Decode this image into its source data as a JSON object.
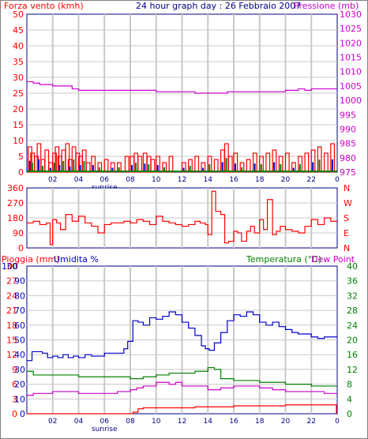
{
  "title": "24 hour graph day : 26 Febbraio 2007",
  "sunrise_label": "sunrise",
  "colors": {
    "red": "#ff0000",
    "magenta": "#cc00cc",
    "blue": "#0000cc",
    "green": "#008000",
    "grid": "#c8c8c8",
    "frame": "#000080",
    "wind_bars": "#ff0000",
    "wind_blue": "#0000cc",
    "wind_green": "#008000"
  },
  "chart_data": [
    {
      "type": "bar",
      "ylabel_left": "Forza vento (kmh)",
      "ylabel_right": "Pressione (mb)",
      "left_ticks": [
        "50",
        "45",
        "40",
        "35",
        "30",
        "25",
        "20",
        "15",
        "10",
        "5",
        "0"
      ],
      "right_ticks_top": [
        "1030",
        "1025",
        "1020",
        "1015",
        "1010",
        "1005",
        "1000",
        "995",
        "990",
        "985"
      ],
      "right_ticks_bottom": [
        "980",
        "975"
      ],
      "x_ticks": [
        "02",
        "04",
        "06",
        "08",
        "10",
        "12",
        "14",
        "16",
        "18",
        "20",
        "22"
      ],
      "x_end_tick": "0",
      "ylim_left": [
        0,
        50
      ],
      "ylim_right": [
        975,
        1030
      ],
      "series": [
        {
          "name": "Pressione (mb)",
          "color": "magenta",
          "type": "line",
          "x": [
            0,
            0.5,
            1.0,
            2.0,
            3.5,
            4.0,
            8.0,
            10.0,
            12.0,
            13.0,
            14.0,
            14.5,
            15.5,
            16.0,
            19.0,
            20.0,
            20.5,
            21.0,
            21.5,
            22.0,
            23.5
          ],
          "y": [
            1006.5,
            1006,
            1005.5,
            1005,
            1004,
            1003.5,
            1003.5,
            1003,
            1003,
            1002.5,
            1002.5,
            1002.5,
            1003,
            1003,
            1003,
            1003.5,
            1003.5,
            1004,
            1003.5,
            1004,
            1004
          ]
        },
        {
          "name": "Forza vento",
          "color": "red",
          "type": "bars",
          "gusts": [
            [
              0.1,
              8
            ],
            [
              0.3,
              6
            ],
            [
              0.6,
              5
            ],
            [
              0.8,
              9
            ],
            [
              1.1,
              4
            ],
            [
              1.4,
              7
            ],
            [
              1.7,
              3
            ],
            [
              2.0,
              6
            ],
            [
              2.2,
              8
            ],
            [
              2.4,
              5
            ],
            [
              2.7,
              7
            ],
            [
              3.0,
              9
            ],
            [
              3.2,
              4
            ],
            [
              3.5,
              8
            ],
            [
              3.8,
              6
            ],
            [
              4.0,
              5
            ],
            [
              4.3,
              7
            ],
            [
              4.6,
              3
            ],
            [
              5.0,
              5
            ],
            [
              5.5,
              3
            ],
            [
              6.0,
              4
            ],
            [
              6.5,
              3
            ],
            [
              7.0,
              3
            ],
            [
              7.6,
              5
            ],
            [
              8.0,
              5
            ],
            [
              8.3,
              6
            ],
            [
              8.6,
              5
            ],
            [
              9.0,
              6
            ],
            [
              9.3,
              5
            ],
            [
              9.6,
              4
            ],
            [
              10.0,
              5
            ],
            [
              10.5,
              3
            ],
            [
              11.0,
              5
            ],
            [
              12.0,
              3
            ],
            [
              12.5,
              4
            ],
            [
              13.0,
              5
            ],
            [
              13.5,
              3
            ],
            [
              14.0,
              5
            ],
            [
              14.5,
              4
            ],
            [
              15.0,
              7
            ],
            [
              15.3,
              9
            ],
            [
              15.6,
              5
            ],
            [
              16.0,
              6
            ],
            [
              16.5,
              3
            ],
            [
              17.0,
              4
            ],
            [
              17.5,
              6
            ],
            [
              18.0,
              5
            ],
            [
              18.5,
              6
            ],
            [
              19.0,
              7
            ],
            [
              19.5,
              5
            ],
            [
              20.0,
              6
            ],
            [
              20.5,
              3
            ],
            [
              21.0,
              5
            ],
            [
              21.5,
              6
            ],
            [
              22.0,
              7
            ],
            [
              22.5,
              8
            ],
            [
              23.0,
              6
            ],
            [
              23.5,
              9
            ]
          ]
        }
      ]
    },
    {
      "type": "line",
      "left_ticks": [
        "360",
        "270",
        "180",
        "90",
        "0"
      ],
      "right_ticks": [
        "N",
        "W",
        "S",
        "E",
        "N"
      ],
      "x_ticks": [],
      "ylim": [
        0,
        360
      ],
      "series": [
        {
          "name": "direction",
          "color": "red",
          "x": [
            0,
            0.5,
            1.0,
            1.5,
            1.8,
            2.0,
            2.3,
            2.6,
            3.0,
            3.5,
            4.0,
            4.5,
            5.0,
            5.5,
            6.0,
            6.5,
            7.0,
            7.5,
            8.0,
            8.5,
            9.0,
            9.5,
            10.0,
            10.5,
            11.0,
            11.5,
            12.0,
            12.5,
            13.0,
            13.4,
            13.8,
            14.0,
            14.3,
            14.6,
            15.0,
            15.3,
            15.6,
            16.0,
            16.3,
            16.6,
            17.0,
            17.3,
            17.6,
            18.0,
            18.3,
            18.6,
            19.0,
            19.3,
            19.6,
            20.0,
            20.5,
            21.0,
            21.5,
            22.0,
            22.5,
            23.0,
            23.5
          ],
          "y": [
            150,
            160,
            140,
            150,
            20,
            170,
            150,
            110,
            200,
            160,
            190,
            150,
            130,
            90,
            140,
            150,
            150,
            160,
            150,
            170,
            160,
            140,
            190,
            160,
            150,
            140,
            130,
            140,
            160,
            150,
            140,
            80,
            340,
            220,
            200,
            30,
            40,
            100,
            90,
            40,
            100,
            130,
            90,
            170,
            110,
            290,
            80,
            100,
            130,
            110,
            100,
            90,
            130,
            170,
            140,
            180,
            160
          ]
        }
      ]
    },
    {
      "type": "line",
      "ylabel_left": "Pioggia (mm)",
      "ylabel_mid": "Umidita %",
      "ylabel_right": "Temperatura (°C)",
      "ylabel_right2": "Dew Point",
      "left_ticks_rain": [
        "30",
        "27",
        "24",
        "21",
        "18",
        "15",
        "12",
        "9",
        "6",
        "3",
        "0"
      ],
      "left_ticks_hum": [
        "100",
        "90",
        "80",
        "70",
        "60",
        "50",
        "40",
        "30",
        "20",
        "10",
        "0"
      ],
      "right_ticks": [
        "40",
        "36",
        "32",
        "28",
        "24",
        "20",
        "16",
        "12",
        "8",
        "4",
        "0"
      ],
      "x_ticks": [
        "02",
        "04",
        "06",
        "08",
        "10",
        "12",
        "14",
        "16",
        "18",
        "20",
        "22"
      ],
      "x_end_tick": "0",
      "ylim_left": [
        0,
        100
      ],
      "ylim_right": [
        0,
        40
      ],
      "series": [
        {
          "name": "Umidita %",
          "color": "blue",
          "x": [
            0,
            0.4,
            0.8,
            1.2,
            1.6,
            2.0,
            2.4,
            2.8,
            3.2,
            3.6,
            4.0,
            4.5,
            5.0,
            5.5,
            6.0,
            6.5,
            7.0,
            7.5,
            7.8,
            8.2,
            8.6,
            9.0,
            9.5,
            10.0,
            10.5,
            11.0,
            11.5,
            12.0,
            12.5,
            13.0,
            13.5,
            13.8,
            14.1,
            14.5,
            15.0,
            15.5,
            16.0,
            16.5,
            17.0,
            17.5,
            18.0,
            18.5,
            19.0,
            19.5,
            20.0,
            20.5,
            21.0,
            21.5,
            22.0,
            22.5,
            23.0,
            23.5
          ],
          "y": [
            36,
            42,
            42,
            41,
            38,
            39,
            38,
            40,
            38,
            39,
            38,
            40,
            39,
            39,
            41,
            41,
            41,
            44,
            49,
            63,
            62,
            60,
            65,
            64,
            66,
            69,
            67,
            62,
            58,
            53,
            46,
            44,
            43,
            48,
            55,
            63,
            67,
            66,
            69,
            67,
            62,
            60,
            62,
            59,
            57,
            55,
            54,
            54,
            52,
            51,
            52,
            52
          ]
        },
        {
          "name": "Temperatura (°C)",
          "color": "green",
          "x": [
            0,
            0.5,
            1.0,
            2.0,
            3.0,
            4.0,
            5.0,
            6.0,
            7.0,
            8.0,
            9.0,
            10.0,
            11.0,
            12.0,
            13.0,
            14.0,
            14.5,
            15.0,
            16.0,
            17.0,
            18.0,
            19.0,
            20.0,
            21.0,
            22.0,
            23.0,
            23.5
          ],
          "y": [
            11.5,
            10.5,
            10.5,
            10.5,
            10.5,
            10,
            10,
            10,
            10,
            9.5,
            10,
            10.5,
            11,
            11,
            11.5,
            12.5,
            12,
            9.5,
            9,
            9,
            8.5,
            8.5,
            8,
            8,
            7.5,
            7.5,
            7.5
          ]
        },
        {
          "name": "Dew Point",
          "color": "magenta",
          "x": [
            0,
            0.5,
            1.0,
            2.0,
            3.0,
            4.0,
            5.0,
            6.0,
            7.0,
            8.0,
            8.5,
            9.0,
            10.0,
            11.0,
            11.5,
            12.0,
            13.0,
            14.0,
            15.0,
            16.0,
            17.0,
            18.0,
            19.0,
            20.0,
            21.0,
            22.0,
            23.0,
            23.5
          ],
          "y": [
            5,
            5.5,
            5.5,
            6,
            6,
            5.5,
            5.5,
            5.5,
            6,
            6.5,
            7,
            7.5,
            8.5,
            8,
            8.5,
            7.5,
            7.5,
            6.5,
            7,
            7.5,
            7.5,
            7,
            6.5,
            6,
            6,
            6,
            5.5,
            5.5
          ]
        },
        {
          "name": "Pioggia (mm)",
          "color": "red",
          "x": [
            0,
            8.0,
            8.2,
            8.6,
            9.0,
            11.0,
            13.0,
            15.0,
            16.0,
            20.0,
            23.5
          ],
          "y": [
            0,
            0,
            0.3,
            1.0,
            1.2,
            1.2,
            1.4,
            1.4,
            1.6,
            1.8,
            1.8
          ]
        }
      ]
    }
  ]
}
